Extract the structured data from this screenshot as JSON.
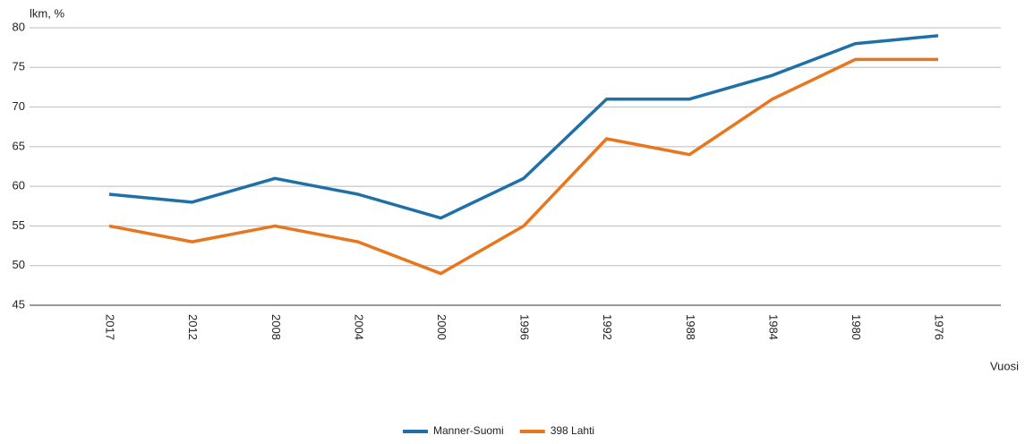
{
  "chart_data": {
    "type": "line",
    "y_label": "lkm, %",
    "x_label": "Vuosi",
    "categories": [
      "2017",
      "2012",
      "2008",
      "2004",
      "2000",
      "1996",
      "1992",
      "1988",
      "1984",
      "1980",
      "1976"
    ],
    "series": [
      {
        "name": "Manner-Suomi",
        "color": "#1f6fa8",
        "values": [
          59,
          58,
          61,
          59,
          56,
          61,
          71,
          71,
          74,
          78,
          79
        ]
      },
      {
        "name": "398 Lahti",
        "color": "#e8761f",
        "values": [
          55,
          53,
          55,
          53,
          49,
          55,
          66,
          64,
          71,
          76,
          76
        ]
      }
    ],
    "ylim": [
      45,
      80
    ],
    "yticks": [
      45,
      50,
      55,
      60,
      65,
      70,
      75,
      80
    ],
    "grid": true,
    "legend": "bottom"
  }
}
